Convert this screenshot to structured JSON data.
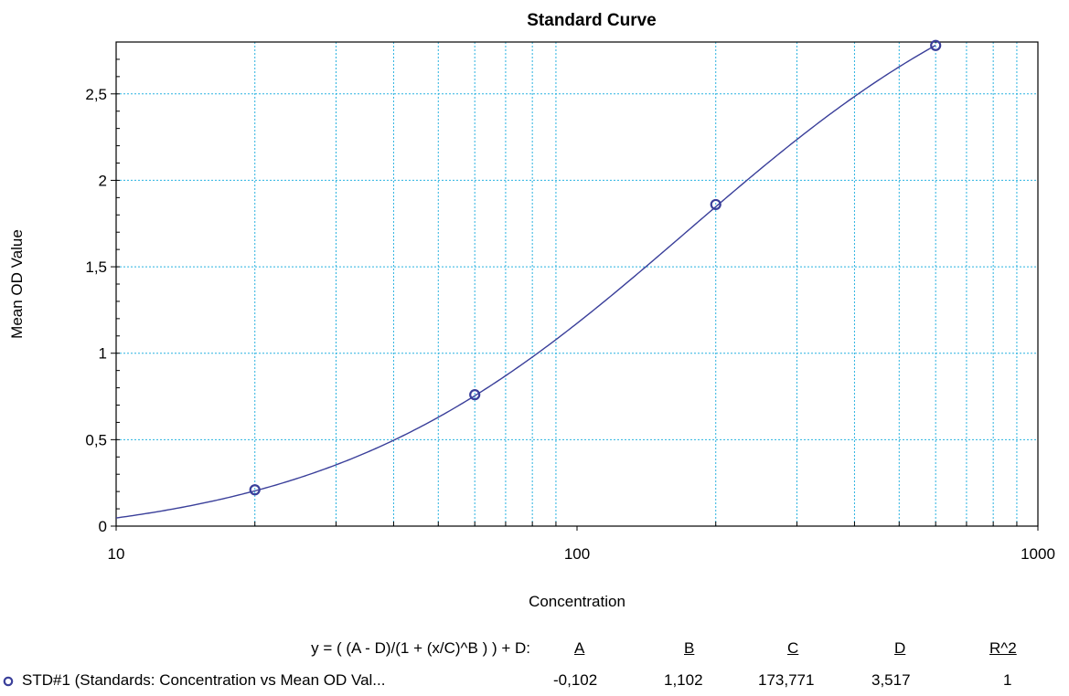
{
  "chart_data": {
    "type": "scatter",
    "title": "Standard Curve",
    "xlabel": "Concentration",
    "ylabel": "Mean OD Value",
    "x_scale": "log",
    "xlim": [
      10,
      1000
    ],
    "ylim": [
      0,
      2.8
    ],
    "x_ticks": [
      "10",
      "100",
      "1000"
    ],
    "y_ticks": [
      "0",
      "0,5",
      "1",
      "1,5",
      "2",
      "2,5"
    ],
    "grid": true,
    "series": [
      {
        "name": "STD#1 (Standards: Concentration vs Mean OD Val...",
        "points": [
          {
            "x": 20,
            "y": 0.21
          },
          {
            "x": 60,
            "y": 0.76
          },
          {
            "x": 200,
            "y": 1.86
          },
          {
            "x": 600,
            "y": 2.78
          }
        ],
        "fit": {
          "A": -0.102,
          "B": 1.102,
          "C": 173.771,
          "D": 3.517
        }
      }
    ],
    "colors": {
      "series": "#3a3f9a",
      "grid": "#29b2e0"
    }
  },
  "legend": {
    "equation": "y = ( (A - D)/(1 + (x/C)^B ) ) + D:",
    "headers": [
      "A",
      "B",
      "C",
      "D",
      "R^2"
    ],
    "series_label": "STD#1 (Standards: Concentration vs Mean OD Val...",
    "values": [
      "-0,102",
      "1,102",
      "173,771",
      "3,517",
      "1"
    ],
    "marker_icon": "circle-marker-icon"
  }
}
